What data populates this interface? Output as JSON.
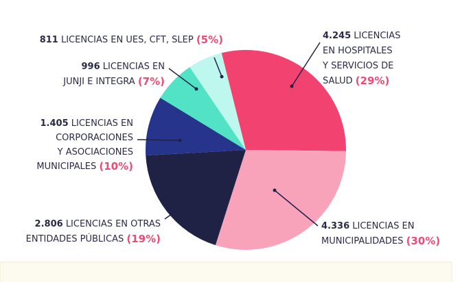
{
  "chart_data": {
    "type": "pie",
    "values": [
      4245,
      4336,
      2806,
      1405,
      996,
      811
    ],
    "value_labels": [
      "4.245",
      "4.336",
      "2.806",
      "1.405",
      "996",
      "811"
    ],
    "percents": [
      29,
      30,
      19,
      10,
      7,
      5
    ],
    "percent_labels": [
      "(29%)",
      "(30%)",
      "(19%)",
      "(10%)",
      "(7%)",
      "(5%)"
    ],
    "labels": [
      [
        "LICENCIAS",
        "EN HOSPITALES",
        "Y SERVICIOS DE",
        "SALUD"
      ],
      [
        "LICENCIAS EN",
        "MUNICIPALIDADES"
      ],
      [
        "LICENCIAS EN OTRAS",
        "ENTIDADES PÚBLICAS"
      ],
      [
        "LICENCIAS EN",
        "CORPORACIONES",
        "Y ASOCIACIONES",
        "MUNICIPALES"
      ],
      [
        "LICENCIAS EN",
        "JUNJI E INTEGRA"
      ],
      [
        "LICENCIAS EN UES, CFT, SLEP"
      ]
    ],
    "colors": [
      "#f2426f",
      "#f9a3bb",
      "#1f2145",
      "#27348b",
      "#52e2c6",
      "#bdf7ee"
    ]
  }
}
